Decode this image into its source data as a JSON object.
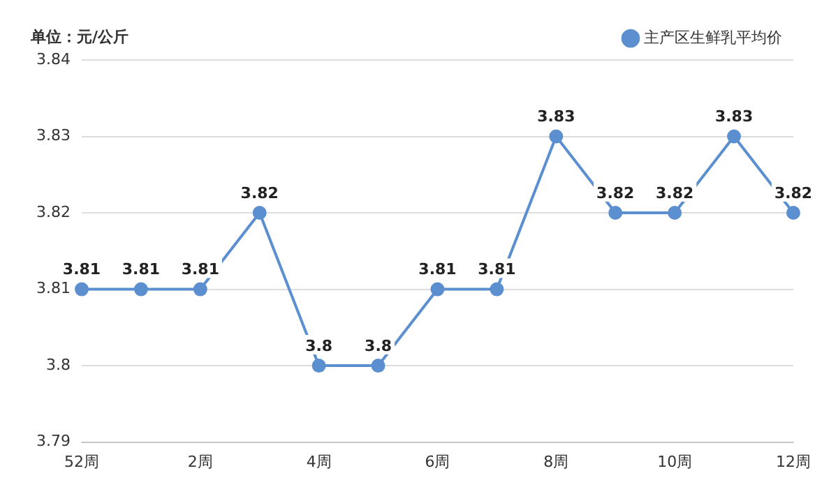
{
  "chart_data": {
    "type": "line",
    "ylabel": "单位：元/公斤",
    "categories": [
      "52周",
      null,
      "2周",
      null,
      "4周",
      null,
      "6周",
      null,
      "8周",
      null,
      "10周",
      null,
      "12周"
    ],
    "series": [
      {
        "name": "主产区生鲜乳平均价",
        "color": "#5b8fd0",
        "values": [
          3.81,
          3.81,
          3.81,
          3.82,
          3.8,
          3.8,
          3.81,
          3.81,
          3.83,
          3.82,
          3.82,
          3.83,
          3.82
        ]
      }
    ],
    "ylim": [
      3.79,
      3.84
    ],
    "yticks": [
      3.79,
      3.8,
      3.81,
      3.82,
      3.83,
      3.84
    ],
    "grid": "y",
    "legend": "top right",
    "marker": "circle",
    "line_style": "solid",
    "data_labels": true
  }
}
